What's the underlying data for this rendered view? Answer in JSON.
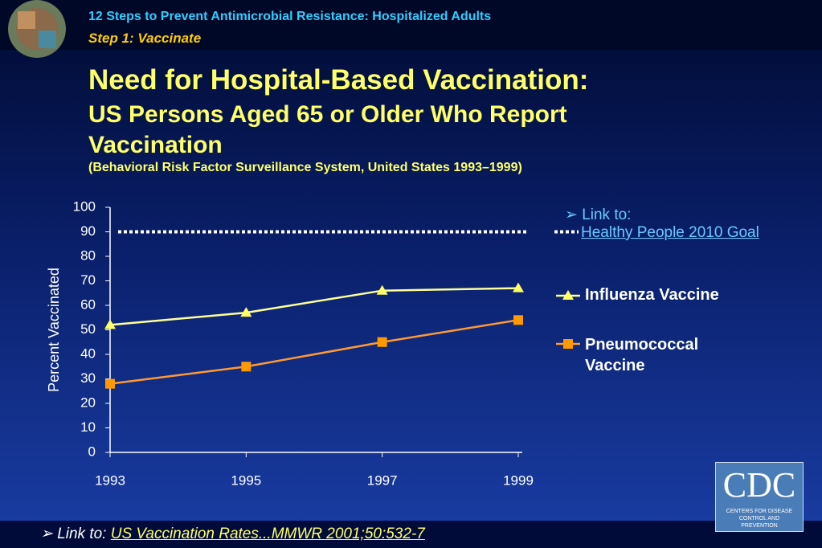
{
  "header": {
    "series_title": "12 Steps to Prevent Antimicrobial Resistance: Hospitalized Adults",
    "step": "Step 1: Vaccinate"
  },
  "chart_data": {
    "type": "line",
    "title": "Need for Hospital-Based Vaccination:",
    "subtitle": "US Persons Aged 65 or Older Who Report Vaccination",
    "note": "(Behavioral Risk Factor Surveillance System, United States 1993–1999)",
    "y_label": "Percent Vaccinated",
    "x": [
      1993,
      1995,
      1997,
      1999
    ],
    "series": [
      {
        "name": "Influenza Vaccine",
        "color": "#ffff99",
        "marker_color": "#ffff66",
        "values": [
          52,
          57,
          66,
          67
        ]
      },
      {
        "name": "Pneumococcal Vaccine",
        "color": "#ff9933",
        "marker_color": "#ff9900",
        "values": [
          28,
          35,
          45,
          54
        ]
      }
    ],
    "goal_value": 90,
    "xlim": [
      1993,
      1999
    ],
    "xticks": [
      1993,
      1995,
      1997,
      1999
    ],
    "ylim": [
      0,
      100
    ],
    "yticks": [
      0,
      10,
      20,
      30,
      40,
      50,
      60,
      70,
      80,
      90,
      100
    ]
  },
  "goal_link": {
    "prefix": "Link to:",
    "label": "Healthy People 2010 Goal"
  },
  "footer_link": {
    "prefix": "Link to:",
    "label": "US Vaccination Rates...MMWR 2001;50:532-7"
  },
  "logo": {
    "name": "CDC",
    "caption": "Centers for Disease Control and Prevention"
  }
}
